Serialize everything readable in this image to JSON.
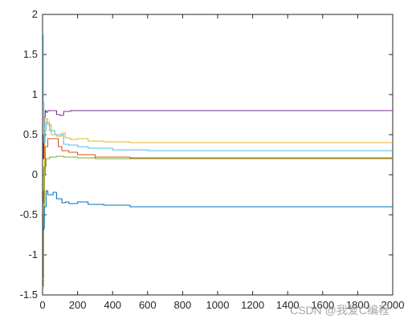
{
  "chart_data": {
    "type": "line",
    "title": "",
    "xlabel": "",
    "ylabel": "",
    "xlim": [
      0,
      2000
    ],
    "ylim": [
      -1.5,
      2
    ],
    "xticks": [
      0,
      200,
      400,
      600,
      800,
      1000,
      1200,
      1400,
      1600,
      1800,
      2000
    ],
    "yticks": [
      -1.5,
      -1,
      -0.5,
      0,
      0.5,
      1,
      1.5,
      2
    ],
    "xtick_labels": [
      "0",
      "200",
      "400",
      "600",
      "800",
      "1000",
      "1200",
      "1400",
      "1600",
      "1800",
      "2000"
    ],
    "ytick_labels": [
      "-1.5",
      "-1",
      "-0.5",
      "0",
      "0.5",
      "1",
      "1.5",
      "2"
    ],
    "grid": false,
    "legend": "none",
    "series": [
      {
        "color": "#7e2f8e",
        "points": [
          [
            0,
            0.5
          ],
          [
            5,
            0.2
          ],
          [
            10,
            0.72
          ],
          [
            15,
            0.8
          ],
          [
            20,
            0.78
          ],
          [
            30,
            0.8
          ],
          [
            60,
            0.8
          ],
          [
            80,
            0.75
          ],
          [
            100,
            0.74
          ],
          [
            120,
            0.79
          ],
          [
            140,
            0.79
          ],
          [
            160,
            0.8
          ],
          [
            200,
            0.8
          ],
          [
            300,
            0.8
          ],
          [
            2000,
            0.8
          ]
        ]
      },
      {
        "color": "#edb120",
        "points": [
          [
            0,
            -1.3
          ],
          [
            6,
            0.1
          ],
          [
            12,
            0.6
          ],
          [
            20,
            0.7
          ],
          [
            30,
            0.62
          ],
          [
            50,
            0.5
          ],
          [
            80,
            0.48
          ],
          [
            110,
            0.52
          ],
          [
            130,
            0.46
          ],
          [
            160,
            0.44
          ],
          [
            200,
            0.45
          ],
          [
            260,
            0.42
          ],
          [
            350,
            0.41
          ],
          [
            500,
            0.4
          ],
          [
            2000,
            0.4
          ]
        ]
      },
      {
        "color": "#4dbeee",
        "points": [
          [
            0,
            1.75
          ],
          [
            4,
            0.9
          ],
          [
            8,
            0.4
          ],
          [
            14,
            0.55
          ],
          [
            20,
            0.65
          ],
          [
            40,
            0.55
          ],
          [
            70,
            0.5
          ],
          [
            100,
            0.5
          ],
          [
            120,
            0.38
          ],
          [
            150,
            0.37
          ],
          [
            200,
            0.35
          ],
          [
            260,
            0.33
          ],
          [
            400,
            0.31
          ],
          [
            600,
            0.3
          ],
          [
            2000,
            0.3
          ]
        ]
      },
      {
        "color": "#d95319",
        "points": [
          [
            0,
            -0.2
          ],
          [
            5,
            -0.35
          ],
          [
            10,
            0.0
          ],
          [
            15,
            0.35
          ],
          [
            30,
            0.45
          ],
          [
            60,
            0.45
          ],
          [
            90,
            0.35
          ],
          [
            110,
            0.3
          ],
          [
            150,
            0.28
          ],
          [
            200,
            0.25
          ],
          [
            300,
            0.22
          ],
          [
            500,
            0.21
          ],
          [
            2000,
            0.21
          ]
        ]
      },
      {
        "color": "#77ac30",
        "points": [
          [
            0,
            -1.4
          ],
          [
            5,
            -0.5
          ],
          [
            10,
            0.1
          ],
          [
            20,
            0.2
          ],
          [
            40,
            0.22
          ],
          [
            80,
            0.23
          ],
          [
            120,
            0.22
          ],
          [
            200,
            0.21
          ],
          [
            300,
            0.2
          ],
          [
            2000,
            0.2
          ]
        ]
      },
      {
        "color": "#0072bd",
        "points": [
          [
            0,
            -0.7
          ],
          [
            5,
            -0.67
          ],
          [
            10,
            -0.4
          ],
          [
            20,
            -0.2
          ],
          [
            30,
            -0.25
          ],
          [
            60,
            -0.22
          ],
          [
            80,
            -0.3
          ],
          [
            110,
            -0.35
          ],
          [
            130,
            -0.34
          ],
          [
            150,
            -0.36
          ],
          [
            200,
            -0.34
          ],
          [
            260,
            -0.37
          ],
          [
            350,
            -0.38
          ],
          [
            500,
            -0.4
          ],
          [
            2000,
            -0.4
          ]
        ]
      }
    ]
  },
  "watermark": "CSDN @我爱C编程"
}
